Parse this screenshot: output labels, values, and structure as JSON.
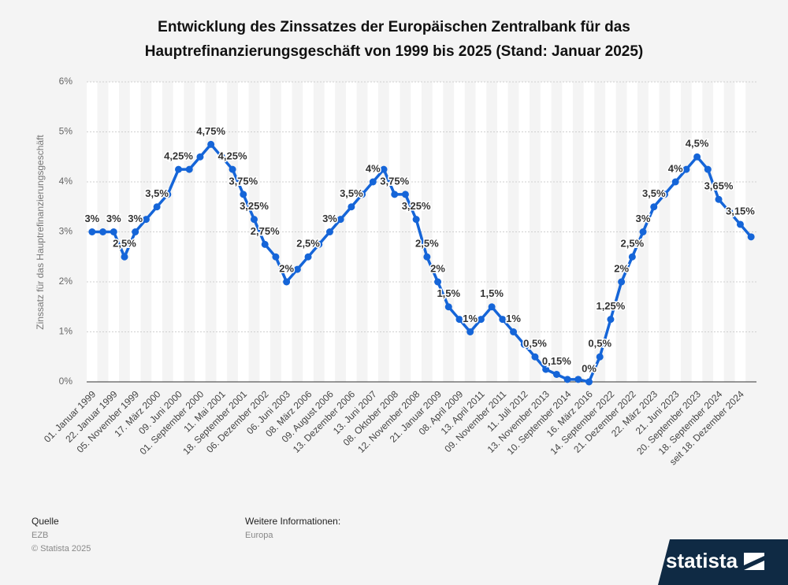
{
  "chart_data": {
    "type": "line",
    "title": [
      "Entwicklung des Zinssatzes der Europäischen Zentralbank für das",
      "Hauptrefinanzierungsgeschäft von 1999 bis 2025 (Stand: Januar 2025)"
    ],
    "y_label": "Zinssatz für das Hauptrefinanzierungsgeschäft",
    "categories": [
      "01. Januar 1999",
      null,
      "22. Januar 1999",
      null,
      "05. November 1999",
      null,
      "17. März 2000",
      null,
      "09. Juni 2000",
      null,
      "01. September 2000",
      null,
      "11. Mai 2001",
      null,
      "18. September 2001",
      null,
      "06. Dezember 2002",
      null,
      "06. Juni 2003",
      null,
      "08. März 2006",
      null,
      "09. August 2006",
      null,
      "13. Dezember 2006",
      null,
      "13. Juni 2007",
      null,
      "08. Oktober 2008",
      null,
      "12. November 2008",
      null,
      "21. Januar 2009",
      null,
      "08. April 2009",
      null,
      "13. April 2011",
      null,
      "09. November 2011",
      null,
      "11. Juli 2012",
      null,
      "13. November 2013",
      null,
      "10. September 2014",
      null,
      "16. März 2016",
      null,
      "14. September 2022",
      null,
      "21. Dezember 2022",
      null,
      "22. März 2023",
      null,
      "21. Juni 2023",
      null,
      "20. September 2023",
      null,
      "18. September 2024",
      null,
      "seit 18. Dezember 2024",
      null
    ],
    "values": [
      3,
      3,
      3,
      2.5,
      3,
      3.25,
      3.5,
      3.75,
      4.25,
      4.25,
      4.5,
      4.75,
      4.5,
      4.25,
      3.75,
      3.25,
      2.75,
      2.5,
      2,
      2.25,
      2.5,
      2.75,
      3,
      3.25,
      3.5,
      3.75,
      4,
      4.25,
      3.75,
      3.75,
      3.25,
      2.5,
      2,
      1.5,
      1.25,
      1,
      1.25,
      1.5,
      1.25,
      1,
      0.75,
      0.5,
      0.25,
      0.15,
      0.05,
      0.05,
      0,
      0.5,
      1.25,
      2,
      2.5,
      3,
      3.5,
      3.75,
      4,
      4.25,
      4.5,
      4.25,
      3.65,
      3.4,
      3.15,
      2.9
    ],
    "value_labels": [
      "3%",
      null,
      "3%",
      "2,5%",
      "3%",
      null,
      "3,5%",
      null,
      "4,25%",
      null,
      null,
      "4,75%",
      null,
      "4,25%",
      "3,75%",
      "3,25%",
      "2,75%",
      null,
      "2%",
      null,
      "2,5%",
      null,
      "3%",
      null,
      "3,5%",
      null,
      "4%",
      null,
      "3,75%",
      null,
      "3,25%",
      "2,5%",
      "2%",
      "1,5%",
      null,
      "1%",
      null,
      "1,5%",
      null,
      "1%",
      null,
      "0,5%",
      null,
      "0,15%",
      null,
      null,
      "0%",
      "0,5%",
      "1,25%",
      "2%",
      "2,5%",
      "3%",
      "3,5%",
      null,
      "4%",
      null,
      "4,5%",
      null,
      "3,65%",
      null,
      "3,15%",
      null
    ],
    "color": "#1565d8",
    "ylim": [
      0,
      6
    ],
    "yticks": [
      {
        "value": 0,
        "label": "0%"
      },
      {
        "value": 1,
        "label": "1%"
      },
      {
        "value": 2,
        "label": "2%"
      },
      {
        "value": 3,
        "label": "3%"
      },
      {
        "value": 4,
        "label": "4%"
      },
      {
        "value": 5,
        "label": "5%"
      },
      {
        "value": 6,
        "label": "6%"
      }
    ],
    "grid": true
  },
  "footer": {
    "source_title": "Quelle",
    "source": "EZB",
    "copyright": "© Statista 2025",
    "info_title": "Weitere Informationen:",
    "info": "Europa",
    "brand": "statista"
  }
}
